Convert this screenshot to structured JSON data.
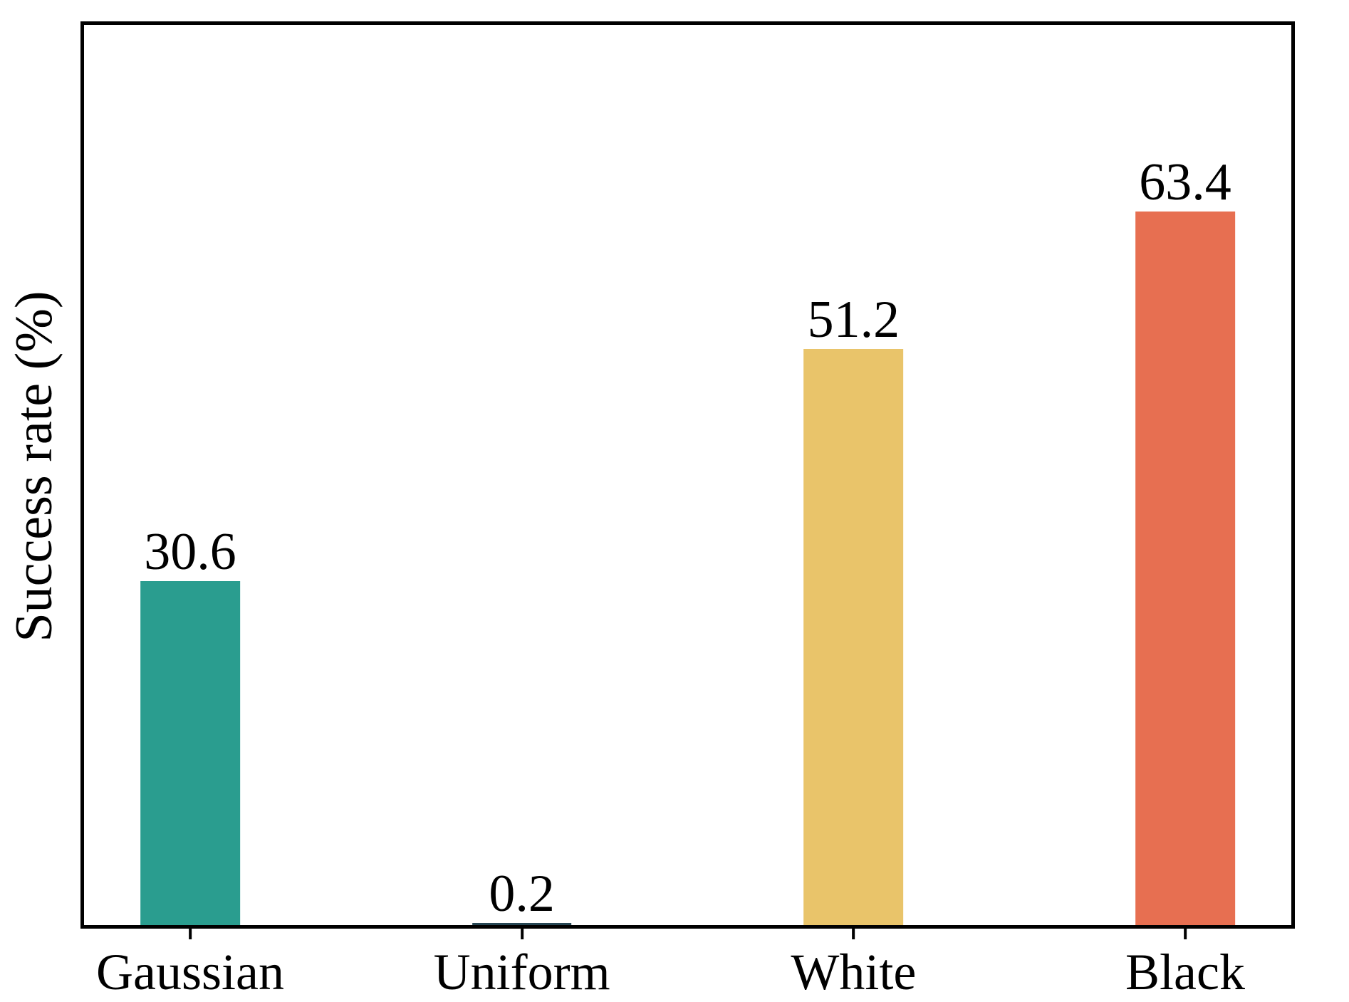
{
  "chart_data": {
    "type": "bar",
    "title": "",
    "categories": [
      "Gaussian",
      "Uniform",
      "White",
      "Black"
    ],
    "values": [
      30.6,
      0.2,
      51.2,
      63.4
    ],
    "value_labels": [
      "30.6",
      "0.2",
      "51.2",
      "63.4"
    ],
    "bar_colors": [
      "#2a9d8f",
      "#264653",
      "#e9c46a",
      "#e76f51"
    ],
    "xlabel": "",
    "ylabel": "Success rate (%)",
    "ylim": [
      0,
      80
    ],
    "xlim": [
      -0.32,
      3.32
    ],
    "bar_width": 0.3,
    "grid": false,
    "legend": false,
    "axis_color": "#000000",
    "background_color": "#ffffff",
    "x_tick_marks": true,
    "y_tick_marks": false
  }
}
